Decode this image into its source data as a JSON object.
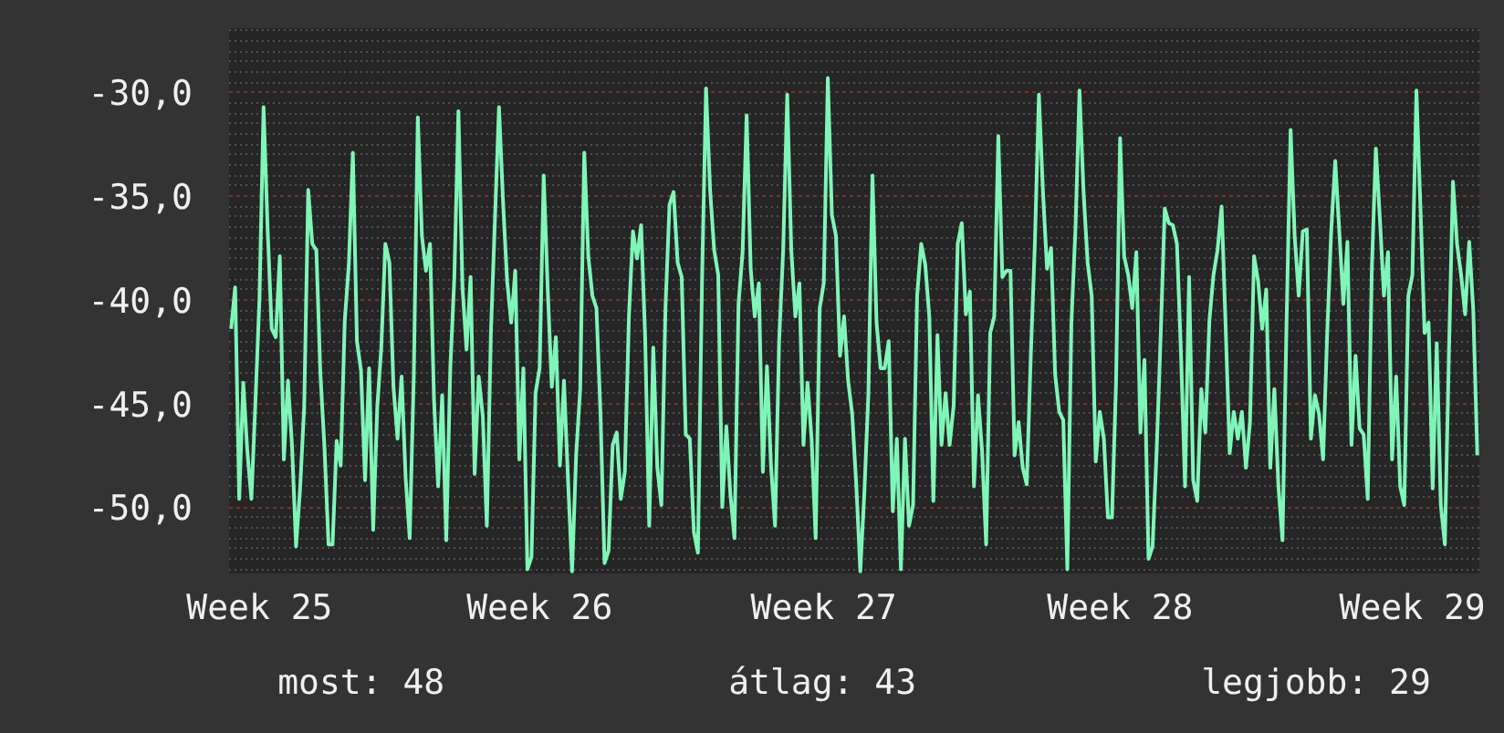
{
  "chart_data": {
    "type": "line",
    "categories": [
      null,
      null,
      null,
      null,
      null,
      null,
      null,
      "Week 25",
      null,
      null,
      null,
      null,
      null,
      null,
      null,
      null,
      null,
      null,
      null,
      null,
      null,
      null,
      null,
      null,
      null,
      null,
      null,
      null,
      null,
      null,
      null,
      null,
      null,
      null,
      null,
      null,
      null,
      null,
      null,
      null,
      null,
      null,
      null,
      null,
      null,
      null,
      null,
      null,
      null,
      null,
      null,
      null,
      null,
      null,
      null,
      null,
      null,
      null,
      null,
      null,
      null,
      null,
      null,
      null,
      null,
      null,
      null,
      null,
      null,
      null,
      null,
      null,
      null,
      null,
      null,
      null,
      "Week 26",
      null,
      null,
      null,
      null,
      null,
      null,
      null,
      null,
      null,
      null,
      null,
      null,
      null,
      null,
      null,
      null,
      null,
      null,
      null,
      null,
      null,
      null,
      null,
      null,
      null,
      null,
      null,
      null,
      null,
      null,
      null,
      null,
      null,
      null,
      null,
      null,
      null,
      null,
      null,
      null,
      null,
      null,
      null,
      null,
      null,
      null,
      null,
      null,
      null,
      null,
      null,
      null,
      null,
      null,
      null,
      null,
      null,
      null,
      null,
      null,
      null,
      null,
      null,
      null,
      null,
      null,
      null,
      null,
      null,
      "Week 27",
      null,
      null,
      null,
      null,
      null,
      null,
      null,
      null,
      null,
      null,
      null,
      null,
      null,
      null,
      null,
      null,
      null,
      null,
      null,
      null,
      null,
      null,
      null,
      null,
      null,
      null,
      null,
      null,
      null,
      null,
      null,
      null,
      null,
      null,
      null,
      null,
      null,
      null,
      null,
      null,
      null,
      null,
      null,
      null,
      null,
      null,
      null,
      null,
      null,
      null,
      null,
      null,
      null,
      null,
      null,
      null,
      null,
      null,
      null,
      null,
      null,
      null,
      null,
      null,
      null,
      null,
      null,
      null,
      null,
      null,
      null,
      null,
      "Week 28",
      null,
      null,
      null,
      null,
      null,
      null,
      null,
      null,
      null,
      null,
      null,
      null,
      null,
      null,
      null,
      null,
      null,
      null,
      null,
      null,
      null,
      null,
      null,
      null,
      null,
      null,
      null,
      null,
      null,
      null,
      null,
      null,
      null,
      null,
      null,
      null,
      null,
      null,
      null,
      null,
      null,
      null,
      null,
      null,
      null,
      null,
      null,
      null,
      null,
      null,
      null,
      null,
      null,
      null,
      null,
      null,
      null,
      null,
      null,
      null,
      null,
      null,
      null,
      null,
      null,
      null,
      null,
      null,
      null,
      null,
      null,
      "Week 29",
      null,
      null,
      null,
      null,
      null,
      null,
      null,
      null,
      null,
      null,
      null,
      null,
      null,
      null,
      null,
      null
    ],
    "series": [
      {
        "color": "#7ff5b8",
        "values": [
          -41.4,
          -39.4,
          -49.6,
          -44.0,
          -47.3,
          -49.6,
          -44.9,
          -39.9,
          -30.7,
          -36.6,
          -41.4,
          -41.8,
          -37.9,
          -47.7,
          -43.9,
          -47.0,
          -51.9,
          -49.1,
          -45.2,
          -34.7,
          -37.3,
          -37.6,
          -43.6,
          -47.1,
          -51.8,
          -51.8,
          -46.8,
          -48.0,
          -41.0,
          -38.3,
          -32.9,
          -42.0,
          -43.4,
          -48.7,
          -43.3,
          -51.1,
          -45.2,
          -42.3,
          -37.3,
          -38.2,
          -44.2,
          -46.7,
          -43.7,
          -48.6,
          -51.5,
          -43.7,
          -31.2,
          -36.9,
          -38.6,
          -37.3,
          -44.9,
          -49.0,
          -44.6,
          -51.6,
          -43.3,
          -38.9,
          -30.9,
          -39.4,
          -42.4,
          -38.9,
          -48.4,
          -43.7,
          -45.6,
          -50.9,
          -41.6,
          -36.1,
          -30.7,
          -35.3,
          -39.1,
          -41.1,
          -38.6,
          -47.7,
          -43.3,
          -53.0,
          -52.4,
          -44.5,
          -43.3,
          -34.0,
          -39.5,
          -44.2,
          -41.8,
          -48.0,
          -43.9,
          -48.7,
          -53.1,
          -47.5,
          -44.3,
          -32.9,
          -37.9,
          -39.8,
          -40.4,
          -45.5,
          -52.7,
          -52.1,
          -47.0,
          -46.4,
          -49.6,
          -48.3,
          -40.8,
          -36.7,
          -38.0,
          -36.4,
          -41.8,
          -50.9,
          -42.3,
          -48.1,
          -49.9,
          -40.4,
          -35.4,
          -34.8,
          -38.2,
          -38.9,
          -46.5,
          -46.7,
          -51.2,
          -52.2,
          -39.2,
          -29.8,
          -34.7,
          -37.6,
          -38.8,
          -50.0,
          -46.1,
          -49.4,
          -51.5,
          -40.2,
          -37.7,
          -31.1,
          -38.5,
          -40.8,
          -39.2,
          -48.3,
          -43.2,
          -48.0,
          -50.9,
          -42.0,
          -37.6,
          -30.1,
          -37.6,
          -40.8,
          -39.2,
          -47.0,
          -44.0,
          -46.7,
          -51.5,
          -40.4,
          -39.2,
          -29.3,
          -35.9,
          -36.9,
          -42.7,
          -40.8,
          -43.9,
          -45.5,
          -48.9,
          -53.1,
          -49.3,
          -44.5,
          -34.0,
          -41.1,
          -43.3,
          -43.3,
          -42.0,
          -50.2,
          -46.7,
          -53.0,
          -46.7,
          -50.9,
          -49.9,
          -39.8,
          -37.3,
          -38.3,
          -40.8,
          -49.7,
          -41.7,
          -47.0,
          -44.5,
          -47.0,
          -45.1,
          -37.3,
          -36.3,
          -40.7,
          -39.6,
          -49.0,
          -44.6,
          -47.3,
          -51.8,
          -41.6,
          -40.8,
          -32.1,
          -38.9,
          -38.6,
          -38.6,
          -47.5,
          -45.9,
          -48.1,
          -48.9,
          -42.7,
          -37.3,
          -30.1,
          -34.8,
          -38.5,
          -37.5,
          -43.6,
          -45.4,
          -45.8,
          -53.0,
          -41.1,
          -36.6,
          -29.9,
          -34.8,
          -38.2,
          -39.8,
          -47.8,
          -45.4,
          -46.7,
          -50.5,
          -50.5,
          -44.0,
          -32.2,
          -37.9,
          -38.8,
          -40.4,
          -37.7,
          -46.4,
          -42.9,
          -52.5,
          -51.9,
          -47.3,
          -41.7,
          -35.6,
          -36.3,
          -36.4,
          -37.3,
          -42.6,
          -49.0,
          -38.9,
          -48.7,
          -49.7,
          -44.3,
          -46.4,
          -41.0,
          -38.8,
          -37.6,
          -35.5,
          -41.3,
          -47.4,
          -45.4,
          -46.7,
          -45.4,
          -48.1,
          -45.9,
          -37.9,
          -39.1,
          -41.4,
          -39.5,
          -48.1,
          -44.3,
          -49.0,
          -51.6,
          -41.1,
          -31.8,
          -36.9,
          -39.8,
          -36.7,
          -36.6,
          -46.7,
          -44.6,
          -45.5,
          -47.7,
          -41.7,
          -36.7,
          -33.3,
          -36.7,
          -40.2,
          -37.2,
          -47.0,
          -42.7,
          -46.2,
          -46.5,
          -49.6,
          -38.6,
          -32.7,
          -36.1,
          -39.8,
          -37.7,
          -47.7,
          -43.7,
          -49.0,
          -49.9,
          -39.8,
          -38.8,
          -29.9,
          -35.6,
          -41.6,
          -41.1,
          -49.1,
          -42.1,
          -49.9,
          -51.8,
          -42.6,
          -34.3,
          -37.3,
          -38.8,
          -40.7,
          -37.2,
          -40.5,
          -47.5
        ]
      }
    ],
    "ylim": [
      -53.2,
      -26.9
    ],
    "yticks": [
      {
        "value": -30,
        "label": "-30,0"
      },
      {
        "value": -35,
        "label": "-35,0"
      },
      {
        "value": -40,
        "label": "-40,0"
      },
      {
        "value": -45,
        "label": "-45,0"
      },
      {
        "value": -50,
        "label": "-50,0"
      }
    ],
    "grid": "y",
    "marker": "none",
    "line_style": "solid",
    "annotations": [
      "most: 48",
      "átlag: 43",
      "legjobb: 29"
    ]
  }
}
